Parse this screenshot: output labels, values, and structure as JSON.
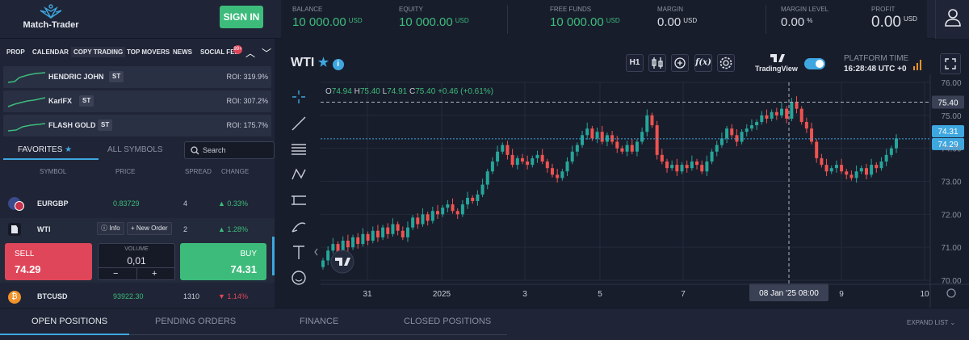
{
  "header": {
    "logo_text": "Match-Trader",
    "signin_label": "SIGN IN",
    "metrics": [
      {
        "label": "BALANCE",
        "value": "10 000.00",
        "unit": "USD"
      },
      {
        "label": "EQUITY",
        "value": "10 000.00",
        "unit": "USD"
      },
      {
        "label": "FREE FUNDS",
        "value": "10 000.00",
        "unit": "USD"
      },
      {
        "label": "MARGIN",
        "value": "0.00",
        "unit": "USD"
      },
      {
        "label": "MARGIN LEVEL",
        "value": "0.00",
        "unit": "%"
      },
      {
        "label": "PROFIT",
        "value": "0.00",
        "unit": "USD"
      }
    ]
  },
  "nav": {
    "tabs": [
      "PROP",
      "CALENDAR",
      "COPY TRADING",
      "TOP MOVERS",
      "NEWS",
      "SOCIAL FEED"
    ],
    "active_tab": "COPY TRADING",
    "badge": "99+"
  },
  "traders": [
    {
      "name": "HENDRIC JOHN",
      "tag": "ST",
      "roi": "ROI: 319.9%"
    },
    {
      "name": "KarlFX",
      "tag": "ST",
      "roi": "ROI: 307.2%"
    },
    {
      "name": "FLASH GOLD",
      "tag": "ST",
      "roi": "ROI: 175.7%"
    }
  ],
  "watchlist": {
    "tabs": {
      "favorites": "FAVORITES",
      "all": "ALL SYMBOLS"
    },
    "search_placeholder": "Search",
    "columns": [
      "SYMBOL",
      "PRICE",
      "SPREAD",
      "CHANGE"
    ],
    "rows": [
      {
        "symbol": "EURGBP",
        "price": "0.83729",
        "spread": "4",
        "change": "0.33%",
        "direction": "up"
      },
      {
        "symbol": "WTI",
        "price": "",
        "spread": "2",
        "change": "1.28%",
        "direction": "up",
        "expanded": true
      },
      {
        "symbol": "BTCUSD",
        "price": "93922.30",
        "spread": "1310",
        "change": "1.14%",
        "direction": "down"
      }
    ],
    "info_label": "Info",
    "new_order_label": "New Order",
    "trade": {
      "sell_label": "SELL",
      "sell_price": "74.29",
      "buy_label": "BUY",
      "buy_price": "74.31",
      "volume_label": "VOLUME",
      "volume": "0,01",
      "minus": "−",
      "plus": "+"
    }
  },
  "chart_header": {
    "instrument": "WTI",
    "timeframe": "H1",
    "tradingview_label": "TradingView",
    "platform_time_label": "PLATFORM TIME",
    "platform_time_value": "16:28:48 UTC +0"
  },
  "chart_data": {
    "type": "candlestick",
    "ohlc_readout": {
      "open": "74.94",
      "high": "75.40",
      "low": "74.91",
      "close": "75.40",
      "change": "+0.46 (+0.61%)"
    },
    "y_ticks": [
      "76.00",
      "75.00",
      "74.00",
      "73.00",
      "72.00",
      "71.00",
      "70.00"
    ],
    "ylim": [
      70,
      76
    ],
    "x_ticks": [
      "31",
      "2025",
      "3",
      "5",
      "7",
      "9",
      "10"
    ],
    "crosshair_label": "08 Jan '25   08:00",
    "crosshair_price": "75.40",
    "ask_price": "74.31",
    "bid_price": "74.29",
    "series_close": [
      70.6,
      70.9,
      71.1,
      70.8,
      71.2,
      71.0,
      71.3,
      71.1,
      71.4,
      71.2,
      71.5,
      71.3,
      71.6,
      71.4,
      71.7,
      71.5,
      71.3,
      71.6,
      71.9,
      71.7,
      72.0,
      71.8,
      72.1,
      72.0,
      72.2,
      72.3,
      72.1,
      72.0,
      72.3,
      72.5,
      72.4,
      72.6,
      72.9,
      73.3,
      73.6,
      73.9,
      74.1,
      73.8,
      73.5,
      73.7,
      73.6,
      73.5,
      73.7,
      73.8,
      73.6,
      73.4,
      73.2,
      73.1,
      73.3,
      73.6,
      73.9,
      74.1,
      74.4,
      74.6,
      74.3,
      74.5,
      74.2,
      74.4,
      74.2,
      74.0,
      73.9,
      74.1,
      73.9,
      74.2,
      74.5,
      75.0,
      74.7,
      73.8,
      73.6,
      73.4,
      73.5,
      73.3,
      73.5,
      73.4,
      73.6,
      73.5,
      73.3,
      73.6,
      73.9,
      74.1,
      74.3,
      74.6,
      74.4,
      74.2,
      74.5,
      74.6,
      74.7,
      74.8,
      75.0,
      74.9,
      75.1,
      75.0,
      75.2,
      74.9,
      75.4,
      75.2,
      74.8,
      74.6,
      74.2,
      73.7,
      73.5,
      73.3,
      73.4,
      73.5,
      73.3,
      73.2,
      73.1,
      73.3,
      73.4,
      73.2,
      73.5,
      73.4,
      73.6,
      73.8,
      74.0,
      74.3
    ]
  },
  "bottom": {
    "tabs": [
      "OPEN POSITIONS",
      "PENDING ORDERS",
      "FINANCE",
      "CLOSED POSITIONS"
    ],
    "expand_list": "EXPAND LIST"
  }
}
